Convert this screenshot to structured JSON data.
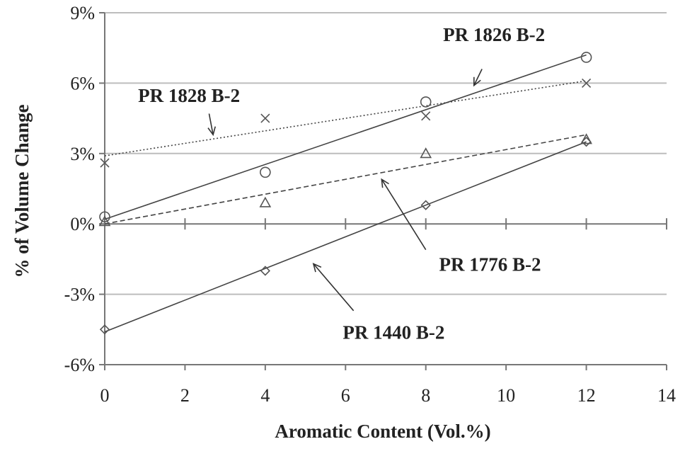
{
  "chart_data": {
    "type": "scatter",
    "title": "",
    "xlabel": "Aromatic  Content (Vol.%)",
    "ylabel": "% of Volume Change",
    "xlim": [
      0,
      14
    ],
    "ylim": [
      -6,
      9
    ],
    "xticks": [
      0,
      2,
      4,
      6,
      8,
      10,
      12,
      14
    ],
    "xtick_labels": [
      "0",
      "2",
      "4",
      "6",
      "8",
      "10",
      "12",
      "14"
    ],
    "yticks": [
      -6,
      -3,
      0,
      3,
      6,
      9
    ],
    "ytick_labels": [
      "-6%",
      "-3%",
      "0%",
      "3%",
      "6%",
      "9%"
    ],
    "grid": "horizontal",
    "series": [
      {
        "name": "PR 1826 B-2",
        "marker": "circle",
        "line_style": "solid",
        "x": [
          0,
          4,
          8,
          12
        ],
        "y": [
          0.3,
          2.2,
          5.2,
          7.1
        ],
        "trendline": [
          [
            0,
            0.2
          ],
          [
            12,
            7.2
          ]
        ],
        "label_at": [
          9.7,
          7.8
        ],
        "arrow_from": [
          9.4,
          6.6
        ],
        "arrow_to": [
          9.2,
          5.9
        ]
      },
      {
        "name": "PR 1828 B-2",
        "marker": "x",
        "line_style": "dotted",
        "x": [
          0,
          4,
          8,
          12
        ],
        "y": [
          2.6,
          4.5,
          4.6,
          6.0
        ],
        "trendline": [
          [
            0,
            2.9
          ],
          [
            12,
            6.1
          ]
        ],
        "label_at": [
          2.1,
          5.2
        ],
        "arrow_from": [
          2.6,
          4.7
        ],
        "arrow_to": [
          2.7,
          3.8
        ]
      },
      {
        "name": "PR 1776 B-2",
        "marker": "triangle",
        "line_style": "dashed",
        "x": [
          0,
          4,
          8,
          12
        ],
        "y": [
          0.1,
          0.9,
          3.0,
          3.6
        ],
        "trendline": [
          [
            0,
            0.0
          ],
          [
            12,
            3.8
          ]
        ],
        "label_at": [
          9.6,
          -2.0
        ],
        "arrow_from": [
          8.0,
          -1.1
        ],
        "arrow_to": [
          6.9,
          1.9
        ]
      },
      {
        "name": "PR 1440 B-2",
        "marker": "diamond",
        "line_style": "solid",
        "x": [
          0,
          4,
          8,
          12
        ],
        "y": [
          -4.5,
          -2.0,
          0.8,
          3.5
        ],
        "trendline": [
          [
            0,
            -4.6
          ],
          [
            12,
            3.5
          ]
        ],
        "label_at": [
          7.2,
          -4.9
        ],
        "arrow_from": [
          6.2,
          -3.7
        ],
        "arrow_to": [
          5.2,
          -1.7
        ]
      }
    ]
  }
}
